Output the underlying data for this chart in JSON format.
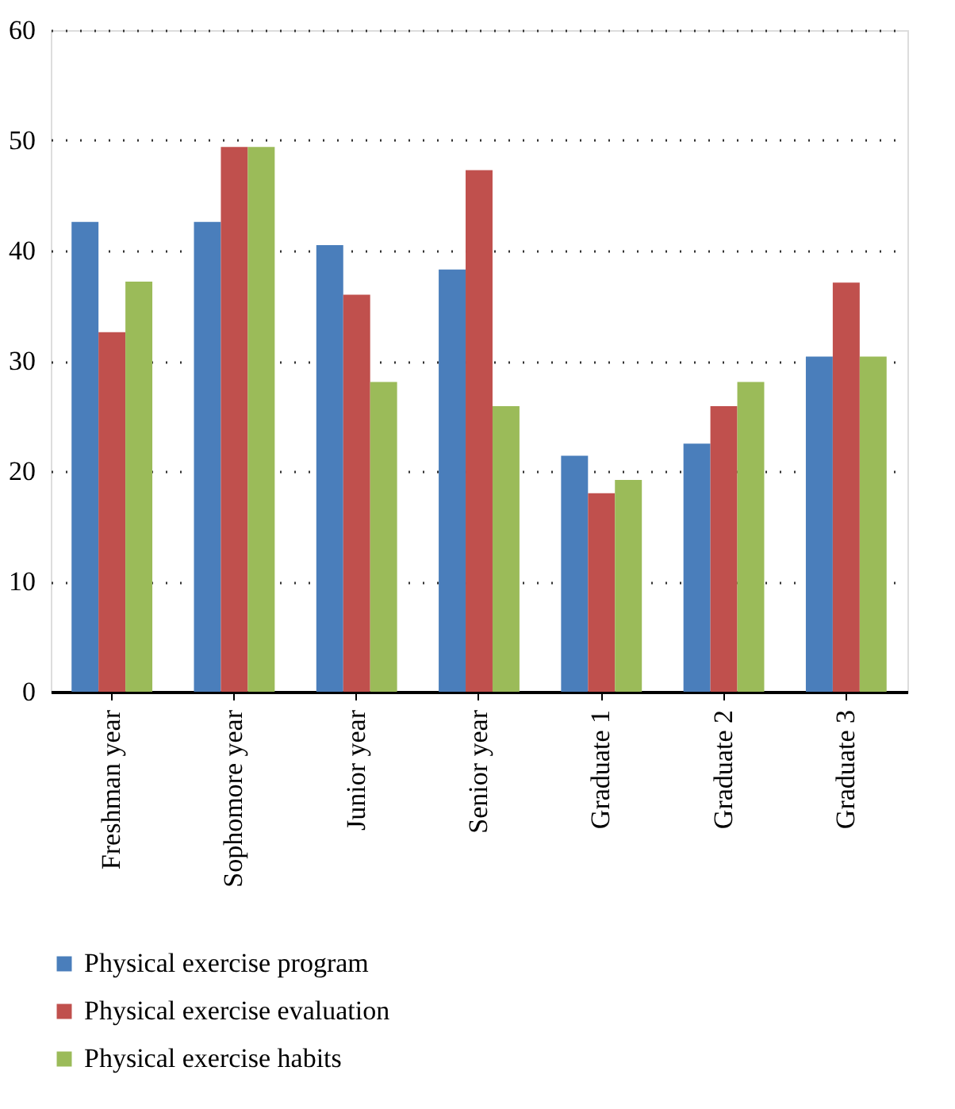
{
  "chart_data": {
    "type": "bar",
    "categories": [
      "Freshman year",
      "Sophomore year",
      "Junior year",
      "Senior year",
      "Graduate 1",
      "Graduate 2",
      "Graduate 3"
    ],
    "series": [
      {
        "name": "Physical exercise program",
        "color": "#4a7ebb",
        "values": [
          42.6,
          42.6,
          40.5,
          38.3,
          21.4,
          22.5,
          30.4
        ]
      },
      {
        "name": "Physical exercise evaluation",
        "color": "#c0504d",
        "values": [
          32.6,
          49.4,
          36.0,
          47.3,
          18.0,
          25.9,
          37.1
        ]
      },
      {
        "name": "Physical exercise habits",
        "color": "#9bbb59",
        "values": [
          37.2,
          49.4,
          28.1,
          25.9,
          19.2,
          28.1,
          30.4
        ]
      }
    ],
    "ylim": [
      0,
      60
    ],
    "yticks": [
      0,
      10,
      20,
      30,
      40,
      50,
      60
    ],
    "grid": "y",
    "legend": "bottom"
  }
}
